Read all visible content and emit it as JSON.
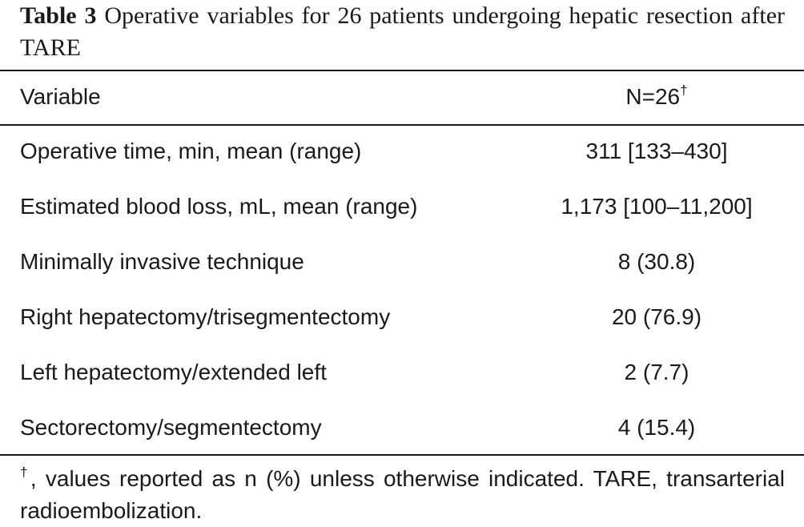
{
  "caption": {
    "label": "Table 3",
    "text": "Operative variables for 26 patients undergoing hepatic resection after TARE"
  },
  "table": {
    "headers": {
      "variable": "Variable",
      "value": "N=26",
      "value_mark": "†"
    },
    "rows": [
      {
        "variable": "Operative time, min, mean (range)",
        "value": "311 [133–430]"
      },
      {
        "variable": "Estimated blood loss, mL, mean (range)",
        "value": "1,173 [100–11,200]"
      },
      {
        "variable": "Minimally invasive technique",
        "value": "8 (30.8)"
      },
      {
        "variable": "Right hepatectomy/trisegmentectomy",
        "value": "20 (76.9)"
      },
      {
        "variable": "Left hepatectomy/extended left",
        "value": "2 (7.7)"
      },
      {
        "variable": "Sectorectomy/segmentectomy",
        "value": "4 (15.4)"
      }
    ]
  },
  "footnote": {
    "mark": "†",
    "text": ", values reported as n (%) unless otherwise indicated. TARE, transarterial radioembolization."
  }
}
